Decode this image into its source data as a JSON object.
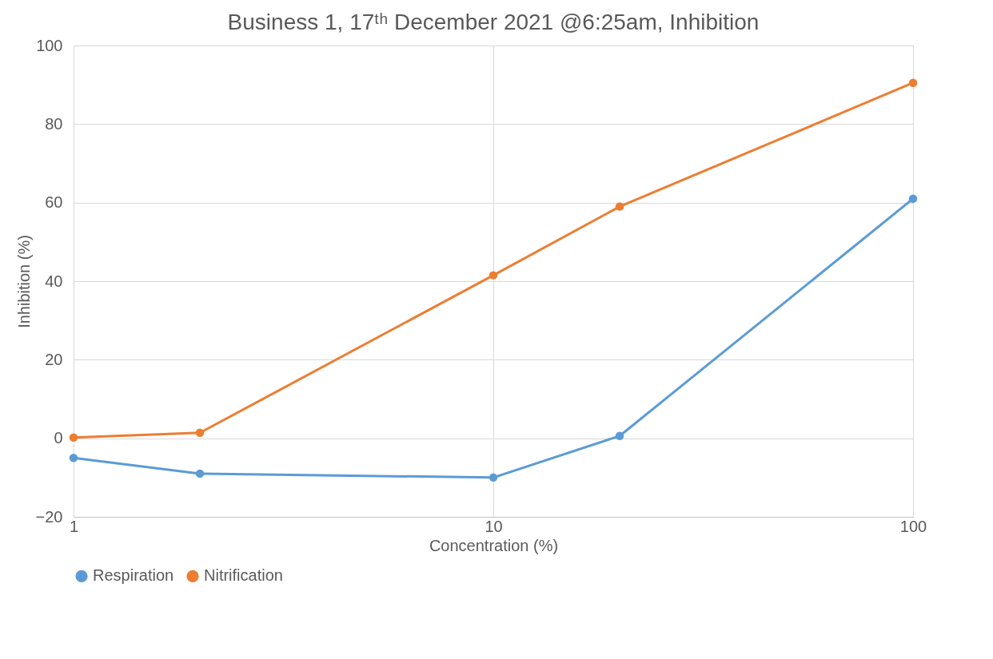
{
  "chart_data": {
    "type": "line",
    "title": "Business 1, 17ᵗʰ December 2021 @6:25am, Inhibition",
    "xlabel": "Concentration (%)",
    "ylabel": "Inhibition (%)",
    "x": [
      1,
      2,
      10,
      20,
      100
    ],
    "series": [
      {
        "name": "Respiration",
        "color": "#5b9bd5",
        "values": [
          -5,
          -9,
          -10,
          0.6,
          61
        ]
      },
      {
        "name": "Nitrification",
        "color": "#ed7d31",
        "values": [
          0.2,
          1.4,
          41.5,
          59,
          90.5
        ]
      }
    ],
    "log": "x",
    "xlim": [
      1,
      100
    ],
    "xticks": [
      1,
      10,
      100
    ],
    "ylim": [
      -20,
      100
    ],
    "yticks": [
      -20,
      0,
      20,
      40,
      60,
      80,
      100
    ],
    "grid": true,
    "legend": "bottom",
    "marker": "circle",
    "line_style": "solid"
  }
}
